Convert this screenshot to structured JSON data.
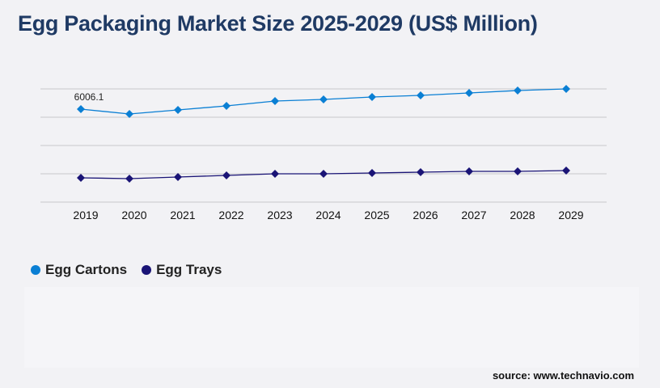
{
  "chart_data": {
    "type": "line",
    "title": "Egg Packaging Market Size 2025-2029 (US$ Million)",
    "categories": [
      "2019",
      "2020",
      "2021",
      "2022",
      "2023",
      "2024",
      "2025",
      "2026",
      "2027",
      "2028",
      "2029"
    ],
    "series": [
      {
        "name": "Egg Cartons",
        "color": "#0a7fd4",
        "values": [
          6006.1,
          5693,
          5954,
          6215,
          6529,
          6633,
          6790,
          6894,
          7051,
          7208,
          7312
        ]
      },
      {
        "name": "Egg Trays",
        "color": "#1a1476",
        "values": [
          1567,
          1515,
          1619,
          1724,
          1828,
          1828,
          1880,
          1932,
          1985,
          1985,
          2037
        ]
      }
    ],
    "data_labels": [
      {
        "series": 0,
        "index": 0,
        "text": "6006.1"
      }
    ],
    "ylim": [
      0,
      7312
    ],
    "grid": true,
    "legend_placement": "bottom-left"
  },
  "source": "source: www.technavio.com"
}
